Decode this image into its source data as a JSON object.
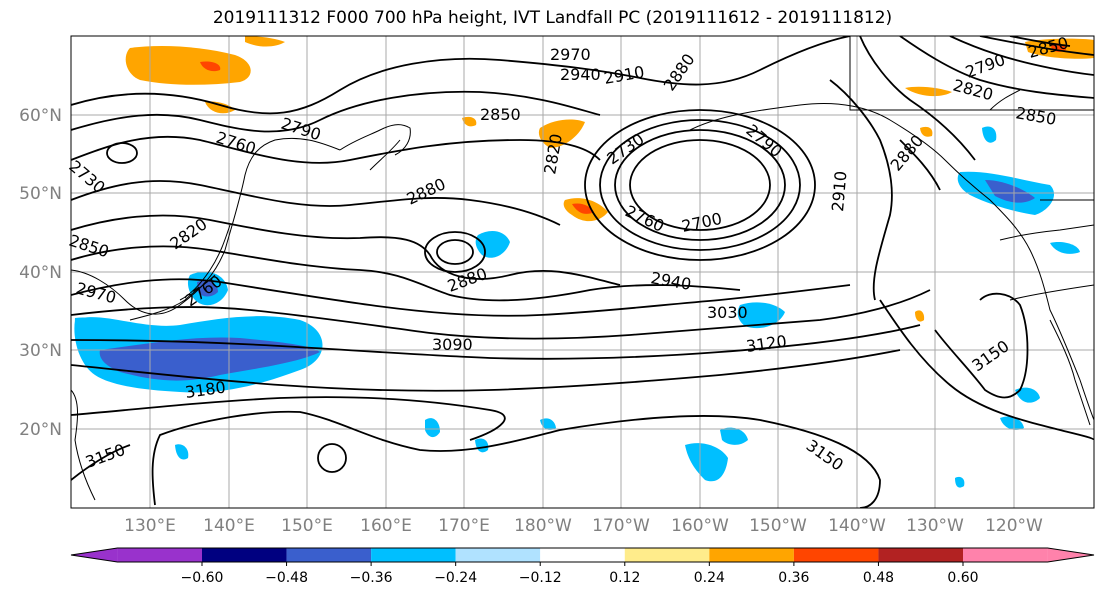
{
  "title": "2019111312 F000 700 hPa height, IVT Landfall PC (2019111612 - 2019111812)",
  "lat_labels": [
    "60°N",
    "50°N",
    "40°N",
    "30°N",
    "20°N"
  ],
  "lon_labels": [
    "130°E",
    "140°E",
    "150°E",
    "160°E",
    "170°E",
    "180°W",
    "170°W",
    "160°W",
    "150°W",
    "140°W",
    "130°W",
    "120°W"
  ],
  "contour_labels": [
    "2970",
    "2940",
    "2910",
    "2880",
    "2850",
    "2820",
    "2790",
    "2760",
    "2730",
    "2700",
    "2850",
    "2880",
    "2880",
    "2940",
    "3030",
    "3090",
    "3120",
    "3150",
    "3150",
    "3180",
    "2970",
    "2760",
    "2820",
    "2730",
    "2850",
    "2910",
    "2790",
    "2790",
    "2820",
    "2850",
    "2880",
    "3150",
    "2760"
  ],
  "colorbar": {
    "tick_labels": [
      "−0.60",
      "−0.48",
      "−0.36",
      "−0.24",
      "−0.12",
      "0.12",
      "0.24",
      "0.36",
      "0.48",
      "0.60"
    ],
    "colors": [
      "#9932cc",
      "#000080",
      "#3a5fcd",
      "#00bfff",
      "#b0e2ff",
      "#ffffff",
      "#ffec8b",
      "#ffa500",
      "#ff4500",
      "#b22222",
      "#ff82ab"
    ]
  }
}
